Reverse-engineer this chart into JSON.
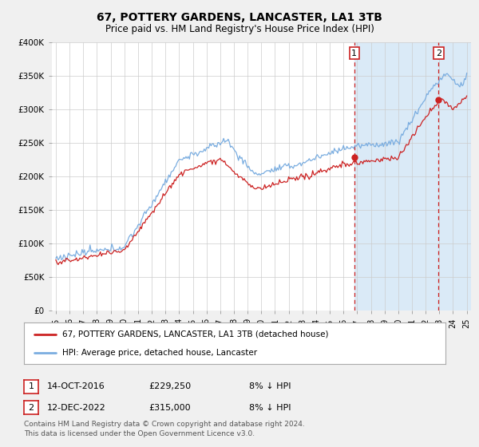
{
  "title": "67, POTTERY GARDENS, LANCASTER, LA1 3TB",
  "subtitle": "Price paid vs. HM Land Registry's House Price Index (HPI)",
  "footer": "Contains HM Land Registry data © Crown copyright and database right 2024.\nThis data is licensed under the Open Government Licence v3.0.",
  "legend_line1": "67, POTTERY GARDENS, LANCASTER, LA1 3TB (detached house)",
  "legend_line2": "HPI: Average price, detached house, Lancaster",
  "annotation1": {
    "label": "1",
    "date": "14-OCT-2016",
    "price": "£229,250",
    "note": "8% ↓ HPI"
  },
  "annotation2": {
    "label": "2",
    "date": "12-DEC-2022",
    "price": "£315,000",
    "note": "8% ↓ HPI"
  },
  "ylim": [
    0,
    400000
  ],
  "yticks": [
    0,
    50000,
    100000,
    150000,
    200000,
    250000,
    300000,
    350000,
    400000
  ],
  "ytick_labels": [
    "£0",
    "£50K",
    "£100K",
    "£150K",
    "£200K",
    "£250K",
    "£300K",
    "£350K",
    "£400K"
  ],
  "background_color": "#f0f0f0",
  "plot_bg_color": "#ffffff",
  "hpi_color": "#7aade0",
  "sale_color": "#cc2222",
  "vline_color": "#cc2222",
  "grid_color": "#cccccc",
  "annotation_box_color": "#cc2222",
  "shade_color": "#daeaf7",
  "sale_point1_year": 2016.79,
  "sale_point1_val": 229250,
  "sale_point2_year": 2022.95,
  "sale_point2_val": 315000,
  "xlim_left": 1994.7,
  "xlim_right": 2025.3
}
